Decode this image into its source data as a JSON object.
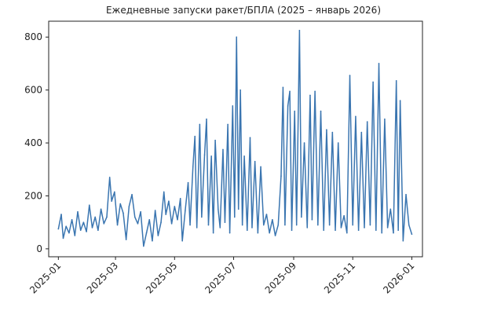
{
  "chart_data": {
    "type": "line",
    "title": "Ежедневные запуски ракет/БПЛА (2025 – январь 2026)",
    "xlabel": "",
    "ylabel": "",
    "x_range": [
      "2024-12-22",
      "2026-01-12"
    ],
    "ylim": [
      -30,
      860
    ],
    "x_ticks": [
      "2025-01",
      "2025-03",
      "2025-05",
      "2025-07",
      "2025-09",
      "2025-11",
      "2026-01"
    ],
    "y_ticks": [
      0,
      200,
      400,
      600,
      800
    ],
    "grid": false,
    "color": "#3a75b0",
    "series": [
      {
        "name": "",
        "points": [
          [
            "2025-01-01",
            75
          ],
          [
            "2025-01-04",
            130
          ],
          [
            "2025-01-06",
            40
          ],
          [
            "2025-01-09",
            85
          ],
          [
            "2025-01-12",
            60
          ],
          [
            "2025-01-15",
            110
          ],
          [
            "2025-01-18",
            50
          ],
          [
            "2025-01-21",
            140
          ],
          [
            "2025-01-24",
            70
          ],
          [
            "2025-01-27",
            100
          ],
          [
            "2025-01-30",
            65
          ],
          [
            "2025-02-02",
            165
          ],
          [
            "2025-02-05",
            80
          ],
          [
            "2025-02-08",
            120
          ],
          [
            "2025-02-11",
            70
          ],
          [
            "2025-02-14",
            150
          ],
          [
            "2025-02-17",
            95
          ],
          [
            "2025-02-20",
            120
          ],
          [
            "2025-02-23",
            270
          ],
          [
            "2025-02-25",
            180
          ],
          [
            "2025-02-28",
            215
          ],
          [
            "2025-03-03",
            90
          ],
          [
            "2025-03-06",
            170
          ],
          [
            "2025-03-09",
            135
          ],
          [
            "2025-03-12",
            35
          ],
          [
            "2025-03-15",
            160
          ],
          [
            "2025-03-18",
            205
          ],
          [
            "2025-03-21",
            120
          ],
          [
            "2025-03-24",
            95
          ],
          [
            "2025-03-27",
            140
          ],
          [
            "2025-03-30",
            10
          ],
          [
            "2025-04-02",
            60
          ],
          [
            "2025-04-05",
            110
          ],
          [
            "2025-04-08",
            30
          ],
          [
            "2025-04-11",
            145
          ],
          [
            "2025-04-14",
            50
          ],
          [
            "2025-04-17",
            100
          ],
          [
            "2025-04-20",
            215
          ],
          [
            "2025-04-22",
            130
          ],
          [
            "2025-04-25",
            180
          ],
          [
            "2025-04-28",
            95
          ],
          [
            "2025-05-01",
            160
          ],
          [
            "2025-05-04",
            110
          ],
          [
            "2025-05-07",
            190
          ],
          [
            "2025-05-09",
            30
          ],
          [
            "2025-05-12",
            145
          ],
          [
            "2025-05-15",
            250
          ],
          [
            "2025-05-17",
            90
          ],
          [
            "2025-05-20",
            310
          ],
          [
            "2025-05-22",
            425
          ],
          [
            "2025-05-24",
            80
          ],
          [
            "2025-05-27",
            470
          ],
          [
            "2025-05-29",
            120
          ],
          [
            "2025-06-01",
            355
          ],
          [
            "2025-06-03",
            490
          ],
          [
            "2025-06-05",
            90
          ],
          [
            "2025-06-08",
            350
          ],
          [
            "2025-06-10",
            60
          ],
          [
            "2025-06-12",
            410
          ],
          [
            "2025-06-15",
            150
          ],
          [
            "2025-06-17",
            80
          ],
          [
            "2025-06-20",
            375
          ],
          [
            "2025-06-22",
            100
          ],
          [
            "2025-06-25",
            470
          ],
          [
            "2025-06-27",
            60
          ],
          [
            "2025-06-30",
            540
          ],
          [
            "2025-07-02",
            120
          ],
          [
            "2025-07-04",
            800
          ],
          [
            "2025-07-06",
            150
          ],
          [
            "2025-07-08",
            600
          ],
          [
            "2025-07-10",
            90
          ],
          [
            "2025-07-12",
            350
          ],
          [
            "2025-07-15",
            70
          ],
          [
            "2025-07-18",
            420
          ],
          [
            "2025-07-20",
            80
          ],
          [
            "2025-07-23",
            330
          ],
          [
            "2025-07-26",
            60
          ],
          [
            "2025-07-29",
            310
          ],
          [
            "2025-08-01",
            90
          ],
          [
            "2025-08-04",
            130
          ],
          [
            "2025-08-07",
            60
          ],
          [
            "2025-08-10",
            110
          ],
          [
            "2025-08-13",
            50
          ],
          [
            "2025-08-16",
            90
          ],
          [
            "2025-08-19",
            275
          ],
          [
            "2025-08-21",
            610
          ],
          [
            "2025-08-23",
            90
          ],
          [
            "2025-08-26",
            540
          ],
          [
            "2025-08-28",
            595
          ],
          [
            "2025-08-30",
            70
          ],
          [
            "2025-09-02",
            520
          ],
          [
            "2025-09-04",
            90
          ],
          [
            "2025-09-07",
            825
          ],
          [
            "2025-09-09",
            120
          ],
          [
            "2025-09-12",
            400
          ],
          [
            "2025-09-15",
            80
          ],
          [
            "2025-09-18",
            580
          ],
          [
            "2025-09-20",
            110
          ],
          [
            "2025-09-23",
            595
          ],
          [
            "2025-09-26",
            90
          ],
          [
            "2025-09-29",
            520
          ],
          [
            "2025-10-02",
            70
          ],
          [
            "2025-10-05",
            450
          ],
          [
            "2025-10-08",
            90
          ],
          [
            "2025-10-11",
            440
          ],
          [
            "2025-10-14",
            70
          ],
          [
            "2025-10-17",
            400
          ],
          [
            "2025-10-20",
            80
          ],
          [
            "2025-10-23",
            125
          ],
          [
            "2025-10-26",
            60
          ],
          [
            "2025-10-29",
            655
          ],
          [
            "2025-11-01",
            90
          ],
          [
            "2025-11-04",
            500
          ],
          [
            "2025-11-07",
            70
          ],
          [
            "2025-11-10",
            440
          ],
          [
            "2025-11-13",
            80
          ],
          [
            "2025-11-16",
            480
          ],
          [
            "2025-11-19",
            90
          ],
          [
            "2025-11-22",
            630
          ],
          [
            "2025-11-25",
            70
          ],
          [
            "2025-11-28",
            700
          ],
          [
            "2025-12-01",
            60
          ],
          [
            "2025-12-04",
            490
          ],
          [
            "2025-12-07",
            80
          ],
          [
            "2025-12-10",
            150
          ],
          [
            "2025-12-13",
            60
          ],
          [
            "2025-12-16",
            635
          ],
          [
            "2025-12-18",
            70
          ],
          [
            "2025-12-20",
            560
          ],
          [
            "2025-12-23",
            30
          ],
          [
            "2025-12-26",
            205
          ],
          [
            "2025-12-29",
            90
          ],
          [
            "2026-01-01",
            55
          ]
        ]
      }
    ]
  }
}
